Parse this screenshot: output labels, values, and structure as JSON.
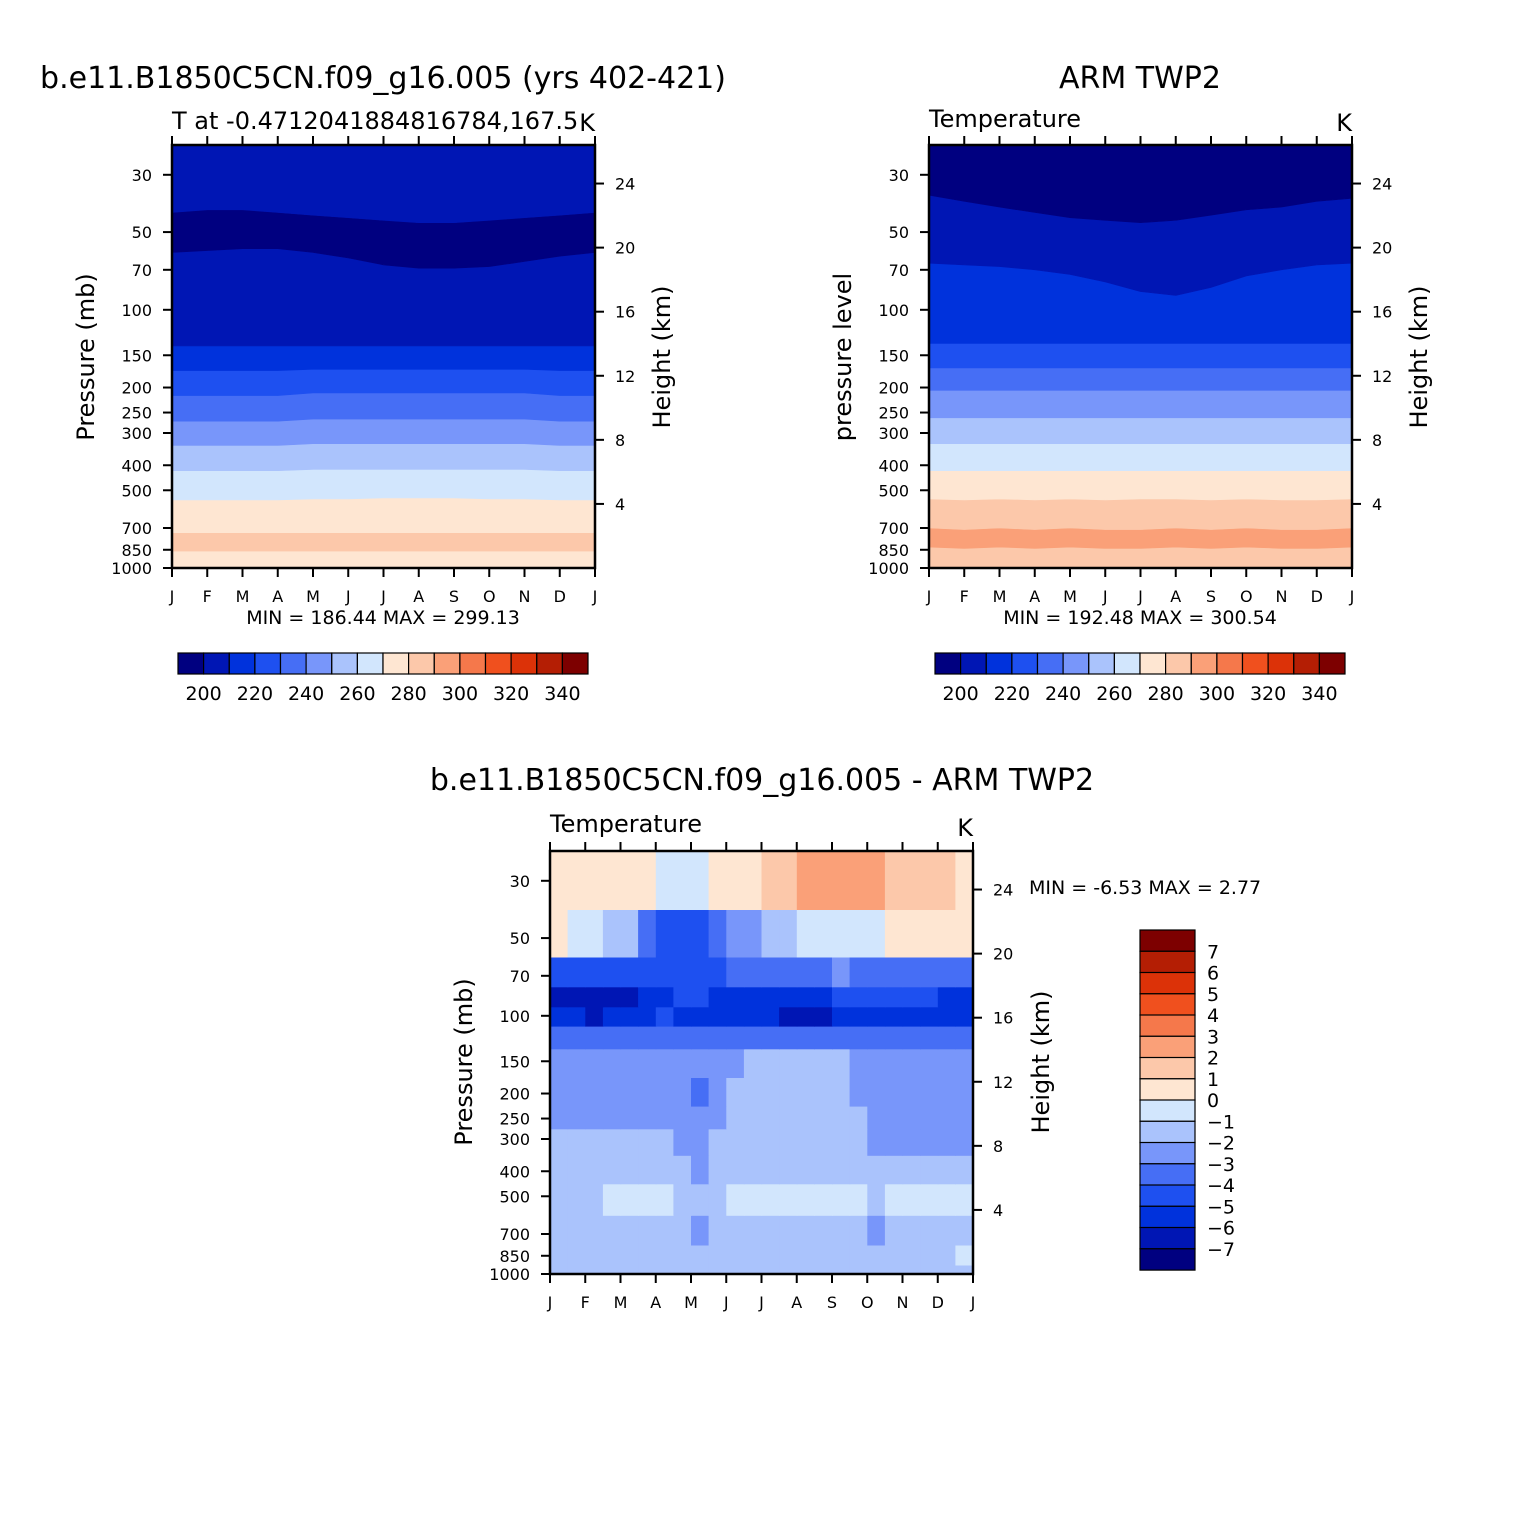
{
  "colors": {
    "abs_palette": [
      "#000080",
      "#0016b4",
      "#0032dc",
      "#1e50f0",
      "#466ef5",
      "#7896fa",
      "#aac3fc",
      "#d2e6fd",
      "#fee6d2",
      "#fcc8aa",
      "#faa078",
      "#f5784b",
      "#f0501e",
      "#dc3208",
      "#b41e04",
      "#7d0000"
    ],
    "diff_palette": [
      "#000080",
      "#0016b4",
      "#0032dc",
      "#1e50f0",
      "#466ef5",
      "#7896fa",
      "#aac3fc",
      "#d2e6fd",
      "#fee6d2",
      "#fcc8aa",
      "#faa078",
      "#f5784b",
      "#f0501e",
      "#dc3208",
      "#b41e04",
      "#7d0000"
    ]
  },
  "chart_data": [
    {
      "id": "model",
      "type": "heatmap",
      "title": "b.e11.B1850C5CN.f09_g16.005 (yrs 402-421)",
      "left_string": "T at -0.4712041884816784,167.5",
      "right_string": "K",
      "ylabel": "Pressure (mb)",
      "right_axis_label": "Height (km)",
      "x_ticks": [
        "J",
        "F",
        "M",
        "A",
        "M",
        "J",
        "J",
        "A",
        "S",
        "O",
        "N",
        "D",
        "J"
      ],
      "y_ticks": [
        30,
        50,
        70,
        100,
        150,
        200,
        250,
        300,
        400,
        500,
        700,
        850,
        1000
      ],
      "height_ticks": [
        24,
        20,
        16,
        12,
        8,
        4
      ],
      "stats": "MIN = 186.44 MAX = 299.13",
      "colorbar_labels": [
        "200",
        "220",
        "240",
        "260",
        "280",
        "300",
        "320",
        "340"
      ],
      "level_boundaries_mb": [
        [
          1000,
          1000,
          1000,
          1000,
          1000,
          1000,
          1000,
          1000,
          1000,
          1000,
          1000,
          1000,
          1000
        ],
        [
          860,
          860,
          860,
          860,
          860,
          860,
          860,
          860,
          860,
          860,
          860,
          860,
          860
        ],
        [
          730,
          730,
          730,
          730,
          730,
          730,
          730,
          730,
          730,
          730,
          730,
          730,
          730
        ],
        [
          545,
          545,
          545,
          545,
          540,
          540,
          535,
          535,
          535,
          540,
          540,
          545,
          545
        ],
        [
          420,
          420,
          420,
          420,
          415,
          415,
          415,
          415,
          415,
          415,
          415,
          420,
          420
        ],
        [
          335,
          335,
          335,
          335,
          330,
          330,
          330,
          330,
          330,
          330,
          330,
          335,
          335
        ],
        [
          270,
          270,
          270,
          270,
          265,
          265,
          265,
          265,
          265,
          265,
          265,
          270,
          270
        ],
        [
          215,
          215,
          215,
          215,
          210,
          210,
          210,
          210,
          210,
          210,
          210,
          215,
          215
        ],
        [
          172,
          172,
          172,
          172,
          170,
          170,
          170,
          170,
          170,
          170,
          170,
          172,
          172
        ],
        [
          138,
          138,
          138,
          138,
          138,
          138,
          138,
          138,
          138,
          138,
          138,
          138,
          138
        ],
        [
          60,
          59,
          58,
          58,
          60,
          63,
          67,
          69,
          69,
          68,
          65,
          62,
          60
        ],
        [
          42,
          41,
          41,
          42,
          43,
          44,
          45,
          46,
          46,
          45,
          44,
          43,
          42
        ],
        [
          23,
          23,
          23,
          23,
          23,
          23,
          23,
          23,
          23,
          23,
          23,
          23,
          23
        ]
      ],
      "band_colors": [
        8,
        9,
        8,
        7,
        6,
        5,
        4,
        3,
        2,
        1,
        0,
        1,
        2
      ]
    },
    {
      "id": "obs",
      "type": "heatmap",
      "title": "ARM TWP2",
      "left_string": "Temperature",
      "right_string": "K",
      "ylabel": "pressure level",
      "right_axis_label": "Height (km)",
      "x_ticks": [
        "J",
        "F",
        "M",
        "A",
        "M",
        "J",
        "J",
        "A",
        "S",
        "O",
        "N",
        "D",
        "J"
      ],
      "y_ticks": [
        30,
        50,
        70,
        100,
        150,
        200,
        250,
        300,
        400,
        500,
        700,
        850,
        1000
      ],
      "height_ticks": [
        24,
        20,
        16,
        12,
        8,
        4
      ],
      "stats": "MIN = 192.48 MAX = 300.54",
      "colorbar_labels": [
        "200",
        "220",
        "240",
        "260",
        "280",
        "300",
        "320",
        "340"
      ],
      "level_boundaries_mb": [
        [
          1000,
          1000,
          1000,
          1000,
          1000,
          1000,
          1000,
          1000,
          1000,
          1000,
          1000,
          1000,
          1000
        ],
        [
          830,
          840,
          830,
          840,
          830,
          840,
          840,
          830,
          840,
          830,
          840,
          840,
          830
        ],
        [
          700,
          710,
          700,
          710,
          700,
          710,
          710,
          700,
          710,
          700,
          710,
          710,
          700
        ],
        [
          540,
          545,
          540,
          545,
          540,
          545,
          540,
          540,
          545,
          540,
          545,
          545,
          540
        ],
        [
          420,
          420,
          420,
          420,
          420,
          420,
          420,
          420,
          420,
          420,
          420,
          420,
          420
        ],
        [
          330,
          330,
          330,
          330,
          330,
          330,
          330,
          330,
          330,
          330,
          330,
          330,
          330
        ],
        [
          262,
          262,
          262,
          262,
          262,
          262,
          262,
          262,
          262,
          262,
          262,
          262,
          262
        ],
        [
          205,
          205,
          205,
          205,
          205,
          205,
          205,
          205,
          205,
          205,
          205,
          205,
          205
        ],
        [
          168,
          168,
          168,
          168,
          168,
          168,
          168,
          168,
          168,
          168,
          168,
          168,
          168
        ],
        [
          135,
          135,
          135,
          135,
          135,
          135,
          135,
          135,
          135,
          135,
          135,
          135,
          135
        ],
        [
          66,
          67,
          68,
          70,
          73,
          78,
          85,
          88,
          82,
          74,
          70,
          67,
          66
        ],
        [
          36,
          38,
          40,
          42,
          44,
          45,
          46,
          45,
          43,
          41,
          40,
          38,
          37
        ],
        [
          23,
          23,
          23,
          23,
          23,
          23,
          23,
          23,
          23,
          23,
          23,
          23,
          23
        ]
      ],
      "band_colors": [
        9,
        10,
        9,
        8,
        7,
        6,
        5,
        4,
        3,
        2,
        1,
        0,
        1,
        2
      ]
    },
    {
      "id": "diff",
      "type": "heatmap",
      "title": "b.e11.B1850C5CN.f09_g16.005 - ARM TWP2",
      "left_string": "Temperature",
      "right_string": "K",
      "ylabel": "Pressure (mb)",
      "right_axis_label": "Height (km)",
      "x_ticks": [
        "J",
        "F",
        "M",
        "A",
        "M",
        "J",
        "J",
        "A",
        "S",
        "O",
        "N",
        "D",
        "J"
      ],
      "y_ticks": [
        30,
        50,
        70,
        100,
        150,
        200,
        250,
        300,
        400,
        500,
        700,
        850,
        1000
      ],
      "height_ticks": [
        24,
        20,
        16,
        12,
        8,
        4
      ],
      "stats": "MIN = -6.53 MAX = 2.77",
      "colorbar_labels": [
        "7",
        "6",
        "5",
        "4",
        "3",
        "2",
        "1",
        "0",
        "-1",
        "-2",
        "-3",
        "-4",
        "-5",
        "-6",
        "-7"
      ],
      "contour_levels": [
        -7,
        -6,
        -5,
        -4,
        -3,
        -2,
        -1,
        0,
        1,
        2,
        3,
        4,
        5,
        6,
        7
      ],
      "pressure_levels_mb": [
        1000,
        850,
        700,
        500,
        400,
        300,
        250,
        200,
        150,
        120,
        100,
        85,
        70,
        50,
        30
      ],
      "values": [
        [
          -1.5,
          -1.8,
          -1.6,
          -1.7,
          -1.6,
          -1.7,
          -1.7,
          -1.6,
          -1.8,
          -1.7,
          -1.6,
          -1.7,
          -1.5
        ],
        [
          -1.4,
          -1.5,
          -1.3,
          -1.4,
          -1.6,
          -1.4,
          -1.3,
          -1.4,
          -1.5,
          -1.6,
          -1.4,
          -1.3,
          0.3
        ],
        [
          -1.5,
          -1.4,
          -1.3,
          -1.5,
          -2.2,
          -1.6,
          -1.1,
          -1.3,
          -1.6,
          -2.3,
          -1.5,
          -1.4,
          -1.2
        ],
        [
          -1.3,
          -1.2,
          -0.8,
          -0.9,
          -1.5,
          -0.8,
          -0.6,
          -0.7,
          -0.8,
          -1.2,
          -0.8,
          -0.9,
          0.4
        ],
        [
          -1.7,
          -1.6,
          -1.5,
          -1.7,
          -2.3,
          -1.3,
          -1.1,
          -1.2,
          -1.5,
          -1.7,
          -1.6,
          -1.5,
          -1.6
        ],
        [
          -1.8,
          -1.7,
          -1.8,
          -1.9,
          -2.4,
          -1.6,
          -1.5,
          -1.5,
          -1.6,
          -2.1,
          -2.3,
          -2.1,
          -2.0
        ],
        [
          -2.2,
          -2.3,
          -2.4,
          -2.3,
          -2.8,
          -1.7,
          -1.5,
          -1.6,
          -1.7,
          -2.3,
          -2.5,
          -2.3,
          -2.2
        ],
        [
          -2.3,
          -2.4,
          -2.5,
          -2.6,
          -3.2,
          -1.7,
          -1.6,
          -1.7,
          -1.8,
          -2.3,
          -2.5,
          -2.4,
          -2.4
        ],
        [
          -2.4,
          -2.5,
          -2.6,
          -2.7,
          -2.6,
          -2.1,
          -1.7,
          -1.6,
          -1.8,
          -2.3,
          -2.5,
          -2.4,
          -2.4
        ],
        [
          -3.4,
          -3.5,
          -3.4,
          -3.5,
          -3.7,
          -3.5,
          -3.4,
          -3.5,
          -3.6,
          -3.5,
          -3.5,
          -3.6,
          -3.5
        ],
        [
          -5.6,
          -6.2,
          -5.8,
          -5.0,
          -5.2,
          -5.6,
          -6.0,
          -6.3,
          -5.9,
          -5.3,
          -5.2,
          -5.8,
          -6.1
        ],
        [
          -6.3,
          -6.5,
          -6.1,
          -5.2,
          -4.8,
          -5.3,
          -5.6,
          -5.5,
          -5.0,
          -4.7,
          -4.8,
          -5.2,
          -5.5
        ],
        [
          -4.3,
          -4.7,
          -4.5,
          -4.7,
          -4.9,
          -4.0,
          -3.6,
          -3.3,
          -3.0,
          -3.2,
          -3.3,
          -3.5,
          -3.2
        ],
        [
          0.2,
          -0.3,
          -2.0,
          -4.1,
          -4.3,
          -3.0,
          -1.7,
          -0.9,
          -0.4,
          -0.5,
          0.6,
          0.5,
          -0.2
        ],
        [
          0.5,
          0.7,
          0.4,
          -0.3,
          -0.4,
          0.6,
          1.2,
          2.2,
          2.7,
          2.4,
          1.4,
          1.1,
          0.7
        ]
      ]
    }
  ]
}
